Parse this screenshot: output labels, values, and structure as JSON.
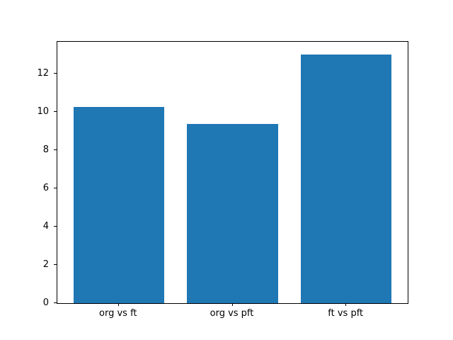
{
  "chart_data": {
    "type": "bar",
    "title": "",
    "xlabel": "",
    "ylabel": "",
    "categories": [
      "org vs ft",
      "org vs pft",
      "ft vs pft"
    ],
    "values": [
      10.25,
      9.35,
      13.0
    ],
    "yticks": [
      0,
      2,
      4,
      6,
      8,
      10,
      12
    ],
    "ylim": [
      0,
      13.65
    ],
    "bar_width_fraction": 0.8,
    "bar_color": "#1f77b4",
    "axis_color": "#000000",
    "background_color": "#ffffff",
    "grid": false,
    "legend": false
  }
}
